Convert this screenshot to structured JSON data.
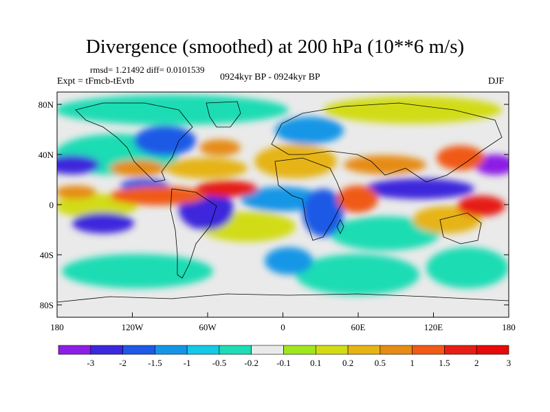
{
  "title": "Divergence (smoothed) at 200 hPa (10**6 m/s)",
  "stats": "rmsd= 1.21492 diff= 0.0101539",
  "experiment": "Expt = tFmcb-tEvtb",
  "period": "0924kyr BP - 0924kyr BP",
  "season": "DJF",
  "axes": {
    "lat_ticks": [
      "80N",
      "40N",
      "0",
      "40S",
      "80S"
    ],
    "lon_ticks": [
      "180",
      "120W",
      "60W",
      "0",
      "60E",
      "120E",
      "180"
    ]
  },
  "colorbar": {
    "colors": [
      "#8c1ee6",
      "#3c28dc",
      "#1e5ae6",
      "#1496e6",
      "#14c8e6",
      "#1edcb4",
      "#eaeaea",
      "#a0e61e",
      "#d2dc14",
      "#e6b414",
      "#e68c14",
      "#f05a14",
      "#e61e14",
      "#e60a0a"
    ],
    "labels": [
      "-3",
      "-2",
      "-1.5",
      "-1",
      "-0.5",
      "-0.2",
      "-0.1",
      "0.1",
      "0.2",
      "0.5",
      "1",
      "1.5",
      "2",
      "3"
    ]
  }
}
